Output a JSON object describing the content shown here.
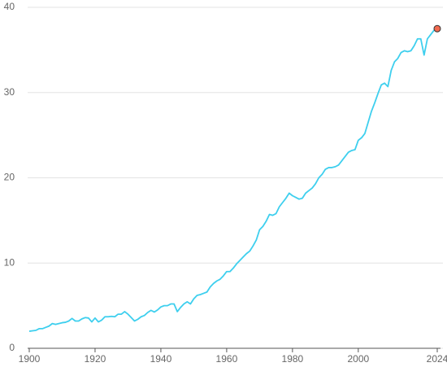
{
  "chart_data": {
    "type": "line",
    "x": [
      1900,
      1901,
      1902,
      1903,
      1904,
      1905,
      1906,
      1907,
      1908,
      1909,
      1910,
      1911,
      1912,
      1913,
      1914,
      1915,
      1916,
      1917,
      1918,
      1919,
      1920,
      1921,
      1922,
      1923,
      1924,
      1925,
      1926,
      1927,
      1928,
      1929,
      1930,
      1931,
      1932,
      1933,
      1934,
      1935,
      1936,
      1937,
      1938,
      1939,
      1940,
      1941,
      1942,
      1943,
      1944,
      1945,
      1946,
      1947,
      1948,
      1949,
      1950,
      1951,
      1952,
      1953,
      1954,
      1955,
      1956,
      1957,
      1958,
      1959,
      1960,
      1961,
      1962,
      1963,
      1964,
      1965,
      1966,
      1967,
      1968,
      1969,
      1970,
      1971,
      1972,
      1973,
      1974,
      1975,
      1976,
      1977,
      1978,
      1979,
      1980,
      1981,
      1982,
      1983,
      1984,
      1985,
      1986,
      1987,
      1988,
      1989,
      1990,
      1991,
      1992,
      1993,
      1994,
      1995,
      1996,
      1997,
      1998,
      1999,
      2000,
      2001,
      2002,
      2003,
      2004,
      2005,
      2006,
      2007,
      2008,
      2009,
      2010,
      2011,
      2012,
      2013,
      2014,
      2015,
      2016,
      2017,
      2018,
      2019,
      2020,
      2021,
      2022,
      2023,
      2024
    ],
    "series": [
      {
        "color": "#3ecfee",
        "marker_color": "#f26a4f",
        "values": [
          2.0,
          2.05,
          2.1,
          2.3,
          2.3,
          2.45,
          2.6,
          2.9,
          2.8,
          2.9,
          3.0,
          3.05,
          3.2,
          3.5,
          3.2,
          3.2,
          3.45,
          3.6,
          3.55,
          3.1,
          3.55,
          3.1,
          3.3,
          3.7,
          3.7,
          3.75,
          3.7,
          4.0,
          4.0,
          4.3,
          4.0,
          3.6,
          3.2,
          3.4,
          3.7,
          3.85,
          4.2,
          4.45,
          4.25,
          4.5,
          4.85,
          5.0,
          5.0,
          5.2,
          5.2,
          4.3,
          4.8,
          5.2,
          5.45,
          5.2,
          5.8,
          6.2,
          6.3,
          6.45,
          6.6,
          7.2,
          7.6,
          7.9,
          8.1,
          8.5,
          9.0,
          9.0,
          9.4,
          9.9,
          10.3,
          10.7,
          11.1,
          11.4,
          12.0,
          12.7,
          13.9,
          14.3,
          14.9,
          15.7,
          15.6,
          15.8,
          16.6,
          17.1,
          17.6,
          18.2,
          17.9,
          17.7,
          17.5,
          17.6,
          18.2,
          18.5,
          18.8,
          19.3,
          20.0,
          20.4,
          21.0,
          21.2,
          21.2,
          21.3,
          21.5,
          22.0,
          22.5,
          23.0,
          23.2,
          23.3,
          24.4,
          24.7,
          25.2,
          26.5,
          27.8,
          28.8,
          29.9,
          30.9,
          31.1,
          30.7,
          32.6,
          33.6,
          34.0,
          34.7,
          34.9,
          34.8,
          34.9,
          35.5,
          36.3,
          36.3,
          34.4,
          36.3,
          36.8,
          37.3,
          37.5
        ]
      }
    ],
    "xlim": [
      1900,
      2024
    ],
    "xticks": [
      1900,
      1920,
      1940,
      1960,
      1980,
      2000,
      2024
    ],
    "ylim": [
      0,
      40
    ],
    "yticks": [
      0,
      10,
      20,
      30,
      40
    ],
    "grid": true
  }
}
